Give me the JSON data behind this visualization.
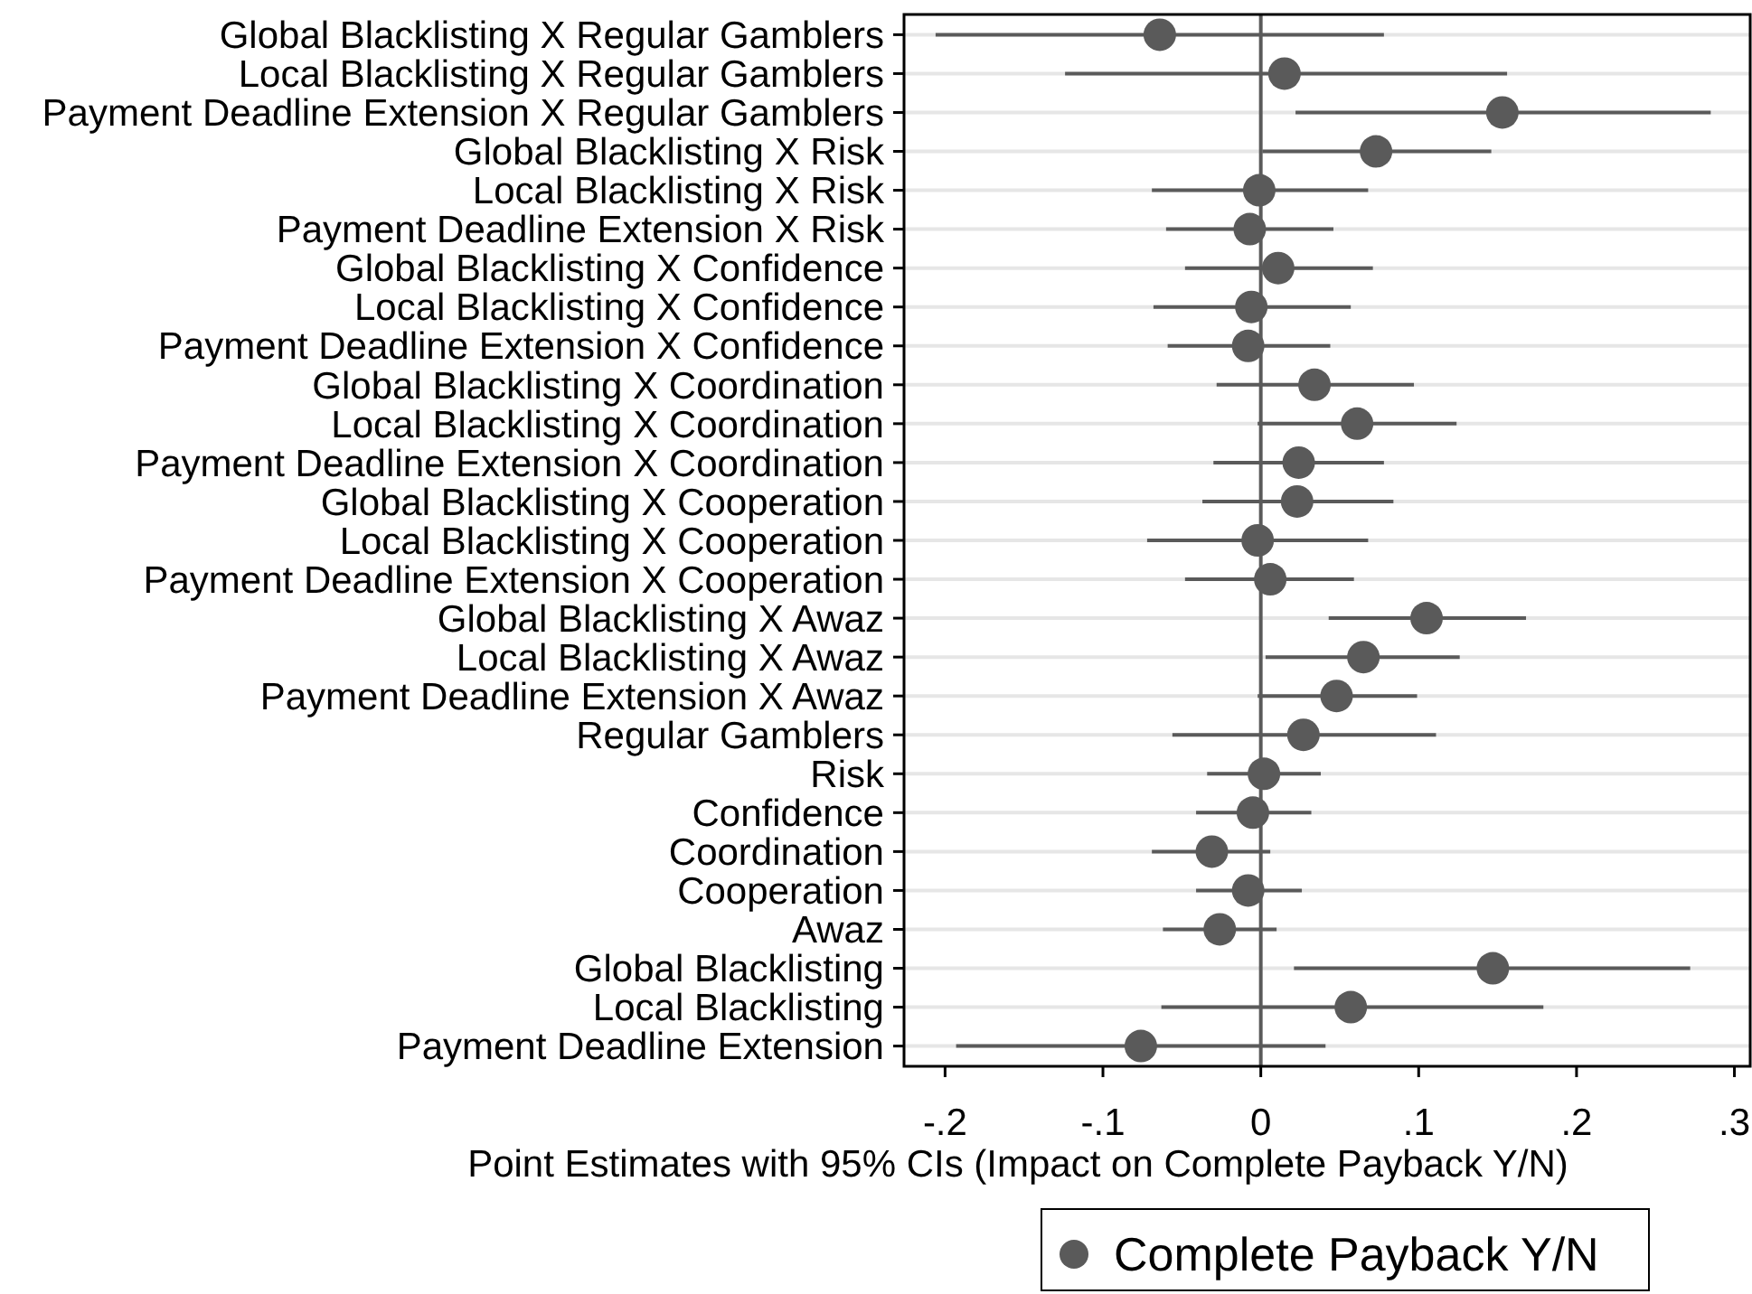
{
  "chart_data": {
    "type": "scatter",
    "orientation": "horizontal",
    "xlabel": "Point Estimates with 95% CIs (Impact on Complete Payback Y/N)",
    "categories": [
      "Global Blacklisting X Regular Gamblers",
      "Local Blacklisting X Regular Gamblers",
      "Payment Deadline Extension X Regular Gamblers",
      "Global Blacklisting X Risk",
      "Local Blacklisting X Risk",
      "Payment Deadline Extension X Risk",
      "Global Blacklisting X Confidence",
      "Local Blacklisting X Confidence",
      "Payment Deadline Extension X Confidence",
      "Global Blacklisting X Coordination",
      "Local Blacklisting X Coordination",
      "Payment Deadline Extension X Coordination",
      "Global Blacklisting X Cooperation",
      "Local Blacklisting X Cooperation",
      "Payment Deadline Extension X Cooperation",
      "Global Blacklisting X Awaz",
      "Local Blacklisting X Awaz",
      "Payment Deadline Extension X Awaz",
      "Regular Gamblers",
      "Risk",
      "Confidence",
      "Coordination",
      "Cooperation",
      "Awaz",
      "Global Blacklisting",
      "Local Blacklisting",
      "Payment Deadline Extension"
    ],
    "series": [
      {
        "name": "Complete Payback Y/N",
        "color": "#5a5a5a",
        "values": [
          -0.064,
          0.015,
          0.153,
          0.073,
          -0.001,
          -0.007,
          0.011,
          -0.006,
          -0.008,
          0.034,
          0.061,
          0.024,
          0.023,
          -0.002,
          0.006,
          0.105,
          0.065,
          0.048,
          0.027,
          0.002,
          -0.005,
          -0.031,
          -0.008,
          -0.026,
          0.147,
          0.057,
          -0.076
        ],
        "errors": [
          [
            -0.206,
            0.078
          ],
          [
            -0.124,
            0.156
          ],
          [
            0.022,
            0.285
          ],
          [
            0.001,
            0.146
          ],
          [
            -0.069,
            0.068
          ],
          [
            -0.06,
            0.046
          ],
          [
            -0.048,
            0.071
          ],
          [
            -0.068,
            0.057
          ],
          [
            -0.059,
            0.044
          ],
          [
            -0.028,
            0.097
          ],
          [
            -0.002,
            0.124
          ],
          [
            -0.03,
            0.078
          ],
          [
            -0.037,
            0.084
          ],
          [
            -0.072,
            0.068
          ],
          [
            -0.048,
            0.059
          ],
          [
            0.043,
            0.168
          ],
          [
            0.003,
            0.126
          ],
          [
            -0.002,
            0.099
          ],
          [
            -0.056,
            0.111
          ],
          [
            -0.034,
            0.038
          ],
          [
            -0.041,
            0.032
          ],
          [
            -0.069,
            0.006
          ],
          [
            -0.041,
            0.026
          ],
          [
            -0.062,
            0.01
          ],
          [
            0.021,
            0.272
          ],
          [
            -0.063,
            0.179
          ],
          [
            -0.193,
            0.041
          ]
        ]
      }
    ],
    "xlim": [
      -0.226,
      0.31
    ],
    "xticks": [
      {
        "value": -0.2,
        "label": "-.2"
      },
      {
        "value": -0.1,
        "label": "-.1"
      },
      0,
      {
        "value": 0.1,
        "label": ".1"
      },
      {
        "value": 0.2,
        "label": ".2"
      },
      {
        "value": 0.3,
        "label": ".3"
      }
    ],
    "ref_lines": [
      {
        "axis": "x",
        "value": 0,
        "color": "#5a5a5a"
      }
    ],
    "grid": "y",
    "legend": "bottom",
    "marker": "circle"
  }
}
